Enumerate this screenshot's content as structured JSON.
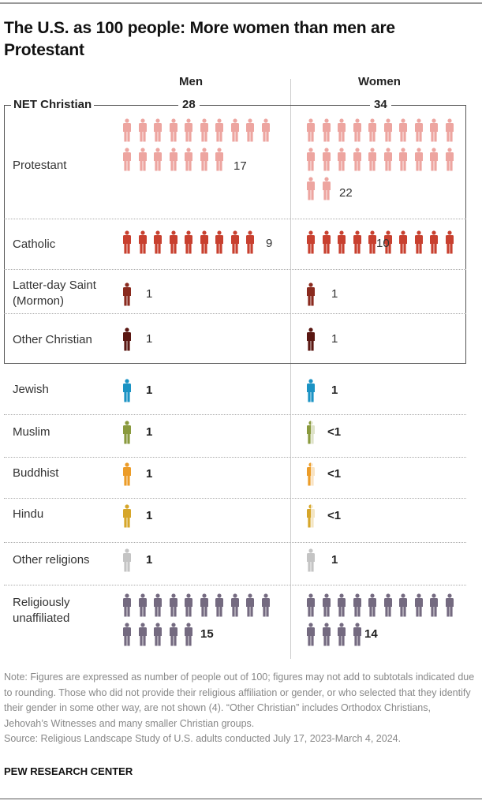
{
  "title": "The U.S. as 100 people: More women than men are Protestant",
  "columns": {
    "men": "Men",
    "women": "Women"
  },
  "net_christian": {
    "label": "NET Christian",
    "men": "28",
    "women": "34"
  },
  "rows": [
    {
      "label": "Protestant",
      "color": "#eda5a0",
      "men": {
        "count": 17,
        "label": "17",
        "partial": false
      },
      "women": {
        "count": 22,
        "label": "22",
        "partial": false
      }
    },
    {
      "label": "Catholic",
      "color": "#c8402f",
      "men": {
        "count": 9,
        "label": "9",
        "partial": false
      },
      "women": {
        "count": 10,
        "label": "10",
        "partial": false
      }
    },
    {
      "label": "Latter-day Saint (Mormon)",
      "color": "#8a2a1e",
      "men": {
        "count": 1,
        "label": "1",
        "partial": false
      },
      "women": {
        "count": 1,
        "label": "1",
        "partial": false
      }
    },
    {
      "label": "Other Christian",
      "color": "#5a1712",
      "men": {
        "count": 1,
        "label": "1",
        "partial": false
      },
      "women": {
        "count": 1,
        "label": "1",
        "partial": false
      }
    },
    {
      "label": "Jewish",
      "color": "#1b93c4",
      "men": {
        "count": 1,
        "label": "1",
        "partial": false
      },
      "women": {
        "count": 1,
        "label": "1",
        "partial": false
      }
    },
    {
      "label": "Muslim",
      "color": "#8a9a3e",
      "men": {
        "count": 1,
        "label": "1",
        "partial": false
      },
      "women": {
        "count": 1,
        "label": "<1",
        "partial": true
      }
    },
    {
      "label": "Buddhist",
      "color": "#ec9c28",
      "men": {
        "count": 1,
        "label": "1",
        "partial": false
      },
      "women": {
        "count": 1,
        "label": "<1",
        "partial": true
      }
    },
    {
      "label": "Hindu",
      "color": "#d6a62a",
      "men": {
        "count": 1,
        "label": "1",
        "partial": false
      },
      "women": {
        "count": 1,
        "label": "<1",
        "partial": true
      }
    },
    {
      "label": "Other religions",
      "color": "#c4c4c4",
      "men": {
        "count": 1,
        "label": "1",
        "partial": false
      },
      "women": {
        "count": 1,
        "label": "1",
        "partial": false
      }
    },
    {
      "label": "Religiously unaffiliated",
      "color": "#746a80",
      "men": {
        "count": 15,
        "label": "15",
        "partial": false
      },
      "women": {
        "count": 14,
        "label": "14",
        "partial": false
      }
    }
  ],
  "note": "Note: Figures are expressed as number of people out of 100; figures may not add to subtotals indicated due to rounding. Those who did not provide their religious affiliation or gender, or who selected that they identify their gender in some other way, are not shown (4). “Other Christian” includes Orthodox Christians, Jehovah’s Witnesses and many smaller Christian groups.",
  "source": "Source: Religious Landscape Study of U.S. adults conducted July 17, 2023-March 4, 2024.",
  "brand": "PEW RESEARCH CENTER",
  "chart_data": {
    "type": "table",
    "title": "The U.S. as 100 people: More women than men are Protestant",
    "columns": [
      "Men",
      "Women"
    ],
    "categories": [
      "NET Christian",
      "Protestant",
      "Catholic",
      "Latter-day Saint (Mormon)",
      "Other Christian",
      "Jewish",
      "Muslim",
      "Buddhist",
      "Hindu",
      "Other religions",
      "Religiously unaffiliated"
    ],
    "series": [
      {
        "name": "Men",
        "values": [
          28,
          17,
          9,
          1,
          1,
          1,
          1,
          1,
          1,
          1,
          15
        ]
      },
      {
        "name": "Women",
        "values": [
          34,
          22,
          10,
          1,
          1,
          1,
          "<1",
          "<1",
          "<1",
          1,
          14
        ]
      }
    ],
    "unit": "people out of 100"
  }
}
